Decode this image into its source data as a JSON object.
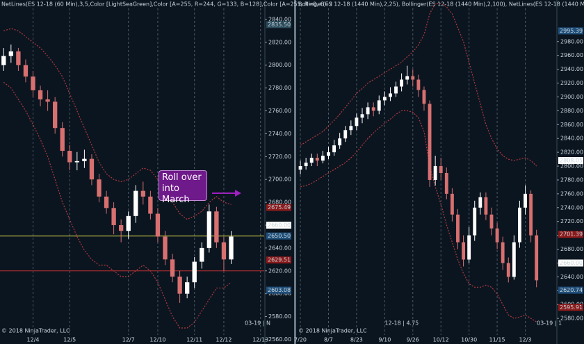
{
  "chart_data": [
    {
      "type": "candlestick",
      "header": "NetLines(ES 12-18 (60 Min),3,5,Color [LightSeaGreen],Color [A=255, R=244, G=133, B=128],Color [A=255, R=0, G=2",
      "footer": "© 2018 NinjaTrader, LLC",
      "contract_label": "03-19 | N",
      "annotation": "Roll over into March",
      "categories": [
        null,
        null,
        null,
        null,
        "12/4",
        null,
        null,
        null,
        null,
        "12/5",
        null,
        null,
        null,
        null,
        null,
        null,
        null,
        "12/7",
        null,
        null,
        null,
        "12/10",
        null,
        null,
        null,
        null,
        "12/11",
        null,
        null,
        null,
        "12/12",
        null,
        null,
        null,
        null,
        "12/13"
      ],
      "open": [
        2800,
        2808,
        2812,
        2800,
        2790,
        2778,
        2770,
        2768,
        2745,
        2725,
        2715,
        2716,
        2718,
        2700,
        2685,
        2675,
        2660,
        2655,
        2668,
        2690,
        2685,
        2670,
        2650,
        2630,
        2615,
        2600,
        2610,
        2628,
        2640,
        2672,
        2645,
        2630,
        null,
        null,
        null,
        null
      ],
      "high": [
        2815,
        2818,
        2815,
        2805,
        2795,
        2782,
        2778,
        2772,
        2750,
        2730,
        2724,
        2726,
        2722,
        2705,
        2690,
        2680,
        2665,
        2672,
        2695,
        2698,
        2690,
        2675,
        2655,
        2635,
        2620,
        2615,
        2632,
        2645,
        2678,
        2676,
        2650,
        2655,
        null,
        null,
        null,
        null
      ],
      "low": [
        2795,
        2802,
        2795,
        2785,
        2772,
        2764,
        2760,
        2740,
        2720,
        2708,
        2708,
        2710,
        2695,
        2680,
        2670,
        2652,
        2645,
        2648,
        2662,
        2678,
        2665,
        2645,
        2625,
        2610,
        2592,
        2596,
        2605,
        2622,
        2636,
        2640,
        2620,
        2626,
        null,
        null,
        null,
        null
      ],
      "close": [
        2808,
        2812,
        2800,
        2790,
        2778,
        2770,
        2768,
        2745,
        2725,
        2715,
        2716,
        2718,
        2700,
        2685,
        2675,
        2660,
        2655,
        2668,
        2690,
        2685,
        2670,
        2650,
        2630,
        2615,
        2600,
        2610,
        2628,
        2640,
        2672,
        2645,
        2630,
        2650,
        null,
        null,
        null,
        null
      ],
      "series": [
        {
          "name": "Upper band",
          "color": "#b03a3a",
          "values": [
            2830,
            2832,
            2830,
            2825,
            2820,
            2815,
            2808,
            2800,
            2790,
            2775,
            2760,
            2745,
            2730,
            2715,
            2705,
            2700,
            2698,
            2700,
            2705,
            2710,
            2708,
            2700,
            2690,
            2680,
            2670,
            2665,
            2668,
            2672,
            2680,
            2685,
            2680,
            2678,
            null,
            null,
            null,
            null
          ]
        },
        {
          "name": "Lower band",
          "color": "#b03a3a",
          "values": [
            2785,
            2780,
            2770,
            2760,
            2748,
            2735,
            2720,
            2700,
            2680,
            2665,
            2650,
            2638,
            2630,
            2625,
            2625,
            2620,
            2615,
            2615,
            2620,
            2625,
            2620,
            2610,
            2595,
            2580,
            2570,
            2570,
            2575,
            2585,
            2595,
            2605,
            2605,
            2610,
            null,
            null,
            null,
            null
          ]
        }
      ],
      "up_color": "#ffffff",
      "down_color": "#d87070",
      "ylim": [
        2556,
        2857
      ],
      "yticks": [
        {
          "value": 2560,
          "label": "2560.00"
        },
        {
          "value": 2580,
          "label": "2580.00"
        },
        {
          "value": 2600,
          "label": "2600.00"
        },
        {
          "value": 2620,
          "label": "2620.00"
        },
        {
          "value": 2640,
          "label": "2640.00"
        },
        {
          "value": 2660,
          "label": "2660.00"
        },
        {
          "value": 2680,
          "label": "2680.00"
        },
        {
          "value": 2700,
          "label": "2700.00"
        },
        {
          "value": 2720,
          "label": "2720.00"
        },
        {
          "value": 2740,
          "label": "2740.00"
        },
        {
          "value": 2760,
          "label": "2760.00"
        },
        {
          "value": 2780,
          "label": "2780.00"
        },
        {
          "value": 2800,
          "label": "2800.00"
        },
        {
          "value": 2820,
          "label": "2820.00"
        },
        {
          "value": 2840,
          "label": "2840.00"
        }
      ],
      "hlines": [
        {
          "value": 2650.5,
          "color": "#e6e64a"
        },
        {
          "value": 2620,
          "color": "#c03030"
        }
      ],
      "price_tags": [
        {
          "value": 2835.5,
          "label": "2835.50",
          "color": "#2a4a5a"
        },
        {
          "value": 2675.49,
          "label": "2675.49",
          "color": "#8b1a1a"
        },
        {
          "value": 2660,
          "label": "2660.00",
          "color": "#ffffff"
        },
        {
          "value": 2650.5,
          "label": "2650.50",
          "color": "#1f4f7a"
        },
        {
          "value": 2629.51,
          "label": "2629.51",
          "color": "#8b1a1a"
        },
        {
          "value": 2603.08,
          "label": "2603.08",
          "color": "#1f4f7a"
        }
      ]
    },
    {
      "type": "candlestick",
      "header": "Bollinger(ES 12-18 (1440 Min),2,25), Bollinger(ES 12-18 (1440 Min),2,100), NetLines(ES 12-18 (1440 Min),3,5,Color",
      "footer": "© 2018 NinjaTrader, LLC",
      "contract_label": "03-19 | 1",
      "note": "12-18 | 4.75",
      "categories": [
        "7/20",
        null,
        null,
        null,
        null,
        "8/7",
        null,
        null,
        null,
        null,
        "8/23",
        null,
        null,
        null,
        null,
        "9/10",
        null,
        null,
        null,
        null,
        "9/26",
        null,
        null,
        null,
        null,
        "10/12",
        null,
        null,
        null,
        null,
        "10/30",
        null,
        null,
        null,
        null,
        "11/15",
        null,
        null,
        null,
        null,
        "12/3",
        null,
        null,
        null,
        null,
        null
      ],
      "open": [
        2795,
        2800,
        2805,
        2812,
        2808,
        2815,
        2820,
        2830,
        2840,
        2852,
        2858,
        2870,
        2875,
        2885,
        2880,
        2895,
        2900,
        2905,
        2915,
        2925,
        2930,
        2925,
        2910,
        2890,
        2780,
        2800,
        2790,
        2760,
        2730,
        2690,
        2665,
        2700,
        2740,
        2755,
        2730,
        2710,
        2690,
        2660,
        2640,
        2690,
        2740,
        2760,
        2700,
        null,
        null,
        null
      ],
      "high": [
        2808,
        2812,
        2818,
        2818,
        2822,
        2828,
        2838,
        2848,
        2858,
        2866,
        2876,
        2884,
        2892,
        2892,
        2902,
        2908,
        2914,
        2922,
        2934,
        2945,
        2940,
        2932,
        2915,
        2895,
        2815,
        2812,
        2798,
        2768,
        2738,
        2700,
        2712,
        2750,
        2762,
        2762,
        2740,
        2718,
        2698,
        2668,
        2700,
        2750,
        2772,
        2765,
        2708,
        null,
        null,
        null
      ],
      "low": [
        2788,
        2795,
        2800,
        2800,
        2804,
        2810,
        2815,
        2825,
        2835,
        2845,
        2852,
        2862,
        2868,
        2872,
        2875,
        2888,
        2894,
        2900,
        2908,
        2918,
        2915,
        2900,
        2880,
        2770,
        2772,
        2780,
        2752,
        2720,
        2680,
        2655,
        2660,
        2692,
        2730,
        2722,
        2700,
        2680,
        2650,
        2632,
        2636,
        2682,
        2730,
        2690,
        2625,
        null,
        null,
        null
      ],
      "close": [
        2800,
        2805,
        2812,
        2808,
        2815,
        2820,
        2830,
        2840,
        2852,
        2858,
        2870,
        2875,
        2885,
        2880,
        2895,
        2900,
        2905,
        2915,
        2925,
        2930,
        2925,
        2910,
        2890,
        2780,
        2800,
        2790,
        2760,
        2730,
        2690,
        2665,
        2700,
        2740,
        2755,
        2730,
        2710,
        2690,
        2660,
        2640,
        2690,
        2740,
        2760,
        2700,
        2635,
        null,
        null,
        null
      ],
      "series": [
        {
          "name": "Upper band",
          "color": "#b03a3a",
          "values": [
            2830,
            2835,
            2840,
            2845,
            2850,
            2858,
            2866,
            2875,
            2885,
            2895,
            2905,
            2912,
            2920,
            2925,
            2930,
            2935,
            2940,
            2945,
            2950,
            2958,
            2965,
            2975,
            2990,
            3020,
            3035,
            3035,
            3030,
            3020,
            3000,
            2980,
            2950,
            2920,
            2890,
            2860,
            2840,
            2825,
            2815,
            2810,
            2808,
            2810,
            2812,
            2808,
            2800,
            null,
            null,
            null
          ]
        },
        {
          "name": "Lower band",
          "color": "#b03a3a",
          "values": [
            2770,
            2772,
            2775,
            2780,
            2785,
            2790,
            2795,
            2800,
            2805,
            2812,
            2820,
            2830,
            2840,
            2848,
            2855,
            2862,
            2868,
            2875,
            2880,
            2880,
            2878,
            2870,
            2850,
            2800,
            2770,
            2745,
            2715,
            2690,
            2665,
            2645,
            2630,
            2625,
            2625,
            2628,
            2625,
            2615,
            2600,
            2585,
            2580,
            2582,
            2585,
            2580,
            2575,
            null,
            null,
            null
          ]
        }
      ],
      "up_color": "#ffffff",
      "down_color": "#d87070",
      "ylim": [
        2543,
        3040
      ],
      "yticks": [
        {
          "value": 2580,
          "label": "2580.00"
        },
        {
          "value": 2600,
          "label": "2600.00"
        },
        {
          "value": 2620,
          "label": "2620.00"
        },
        {
          "value": 2640,
          "label": "2640.00"
        },
        {
          "value": 2660,
          "label": "2660.00"
        },
        {
          "value": 2680,
          "label": "2680.00"
        },
        {
          "value": 2700,
          "label": "2700.00"
        },
        {
          "value": 2720,
          "label": "2720.00"
        },
        {
          "value": 2740,
          "label": "2740.00"
        },
        {
          "value": 2760,
          "label": "2760.00"
        },
        {
          "value": 2780,
          "label": "2780.00"
        },
        {
          "value": 2800,
          "label": "2800.00"
        },
        {
          "value": 2820,
          "label": "2820.00"
        },
        {
          "value": 2840,
          "label": "2840.00"
        },
        {
          "value": 2860,
          "label": "2860.00"
        },
        {
          "value": 2880,
          "label": "2880.00"
        },
        {
          "value": 2900,
          "label": "2900.00"
        },
        {
          "value": 2920,
          "label": "2920.00"
        },
        {
          "value": 2940,
          "label": "2940.00"
        },
        {
          "value": 2960,
          "label": "2960.00"
        },
        {
          "value": 2980,
          "label": "2980.00"
        }
      ],
      "price_tags": [
        {
          "value": 2995.39,
          "label": "2995.39",
          "color": "#1f4f7a"
        },
        {
          "value": 2808.05,
          "label": "2808.05",
          "color": "#ffffff"
        },
        {
          "value": 2701.39,
          "label": "2701.39",
          "color": "#8b1a1a"
        },
        {
          "value": 2660,
          "label": "2660.00",
          "color": "#ffffff"
        },
        {
          "value": 2620.74,
          "label": "2620.74",
          "color": "#1f4f7a"
        },
        {
          "value": 2595.91,
          "label": "2595.91",
          "color": "#8b1a1a"
        }
      ]
    }
  ]
}
